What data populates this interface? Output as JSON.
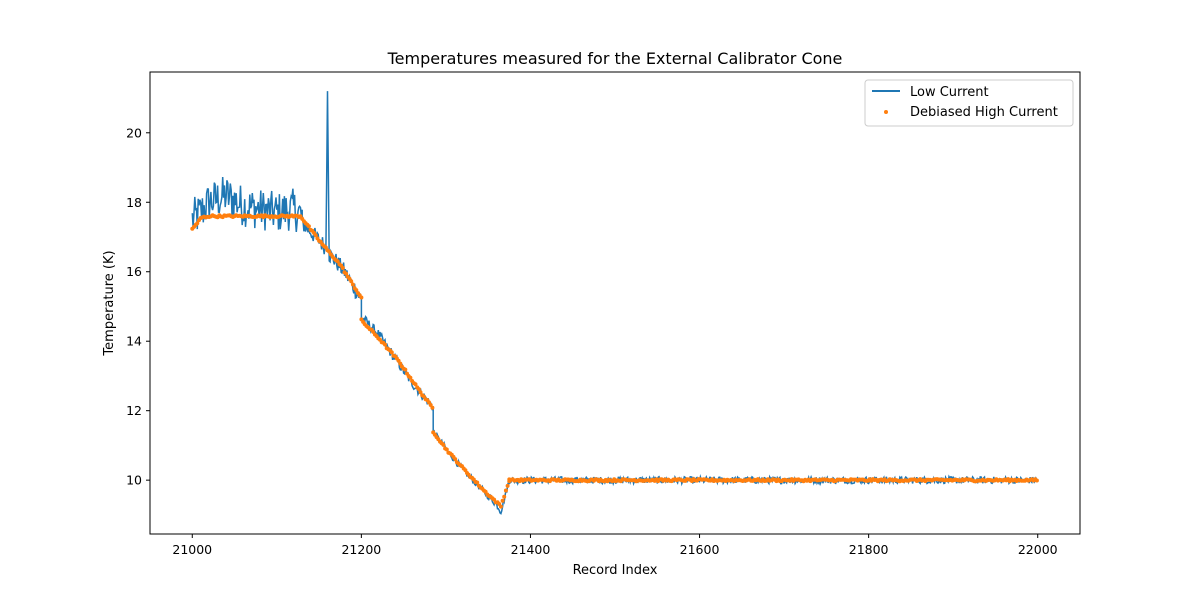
{
  "chart_data": {
    "type": "line",
    "title": "Temperatures measured for the External Calibrator Cone",
    "xlabel": "Record Index",
    "ylabel": "Temperature (K)",
    "xlim": [
      20950,
      22050
    ],
    "ylim": [
      8.45,
      21.75
    ],
    "xticks": [
      21000,
      21200,
      21400,
      21600,
      21800,
      22000
    ],
    "xtick_labels": [
      "21000",
      "21200",
      "21400",
      "21600",
      "21800",
      "22000"
    ],
    "yticks": [
      10,
      12,
      14,
      16,
      18,
      20
    ],
    "ytick_labels": [
      "10",
      "12",
      "14",
      "16",
      "18",
      "20"
    ],
    "grid": false,
    "legend_position": "top-right",
    "colors": {
      "low_current": "#1f77b4",
      "high_current": "#ff7f0e"
    },
    "series": [
      {
        "name": "Low Current",
        "kind": "line",
        "x_range": [
          21000,
          22000
        ],
        "segments": [
          {
            "x": [
              21000,
              21010,
              21020,
              21040,
              21060,
              21080,
              21100,
              21120,
              21130
            ],
            "y": [
              17.5,
              17.7,
              18.0,
              18.2,
              17.9,
              17.8,
              17.7,
              17.8,
              17.6
            ]
          },
          {
            "x": [
              21130,
              21150,
              21158,
              21160,
              21162,
              21170,
              21180,
              21190,
              21200
            ],
            "y": [
              17.4,
              16.9,
              16.7,
              21.2,
              16.5,
              16.3,
              16.0,
              15.6,
              15.2
            ]
          },
          {
            "x": [
              21200,
              21220,
              21240,
              21260,
              21285
            ],
            "y": [
              14.7,
              14.2,
              13.5,
              12.8,
              12.1
            ]
          },
          {
            "x": [
              21285,
              21300,
              21320,
              21340,
              21360,
              21365,
              21375
            ],
            "y": [
              11.4,
              10.9,
              10.3,
              9.8,
              9.3,
              9.1,
              10.0
            ]
          },
          {
            "x": [
              21375,
              21500,
              21600,
              21700,
              21800,
              21900,
              22000
            ],
            "y": [
              10.0,
              10.0,
              10.0,
              10.0,
              10.0,
              10.0,
              10.0
            ]
          }
        ],
        "noise_amplitude": [
          0.6,
          0.25,
          0.15,
          0.1,
          0.1
        ]
      },
      {
        "name": "Debiased High Current",
        "kind": "scatter",
        "segments": [
          {
            "x": [
              21000,
              21005,
              21010,
              21020,
              21050,
              21080,
              21100,
              21128
            ],
            "y": [
              17.25,
              17.35,
              17.55,
              17.6,
              17.6,
              17.6,
              17.6,
              17.6
            ]
          },
          {
            "x": [
              21128,
              21150,
              21175,
              21200
            ],
            "y": [
              17.6,
              16.9,
              16.2,
              15.25
            ]
          },
          {
            "x": [
              21200,
              21220,
              21245,
              21265,
              21285
            ],
            "y": [
              14.6,
              14.1,
              13.4,
              12.7,
              12.05
            ]
          },
          {
            "x": [
              21285,
              21300,
              21320,
              21345,
              21365,
              21375
            ],
            "y": [
              11.4,
              10.9,
              10.35,
              9.7,
              9.25,
              10.0
            ]
          },
          {
            "x": [
              21375,
              21500,
              21600,
              21700,
              21800,
              21900,
              22000
            ],
            "y": [
              10.0,
              10.0,
              10.0,
              10.0,
              10.0,
              10.0,
              10.0
            ]
          }
        ]
      }
    ]
  }
}
